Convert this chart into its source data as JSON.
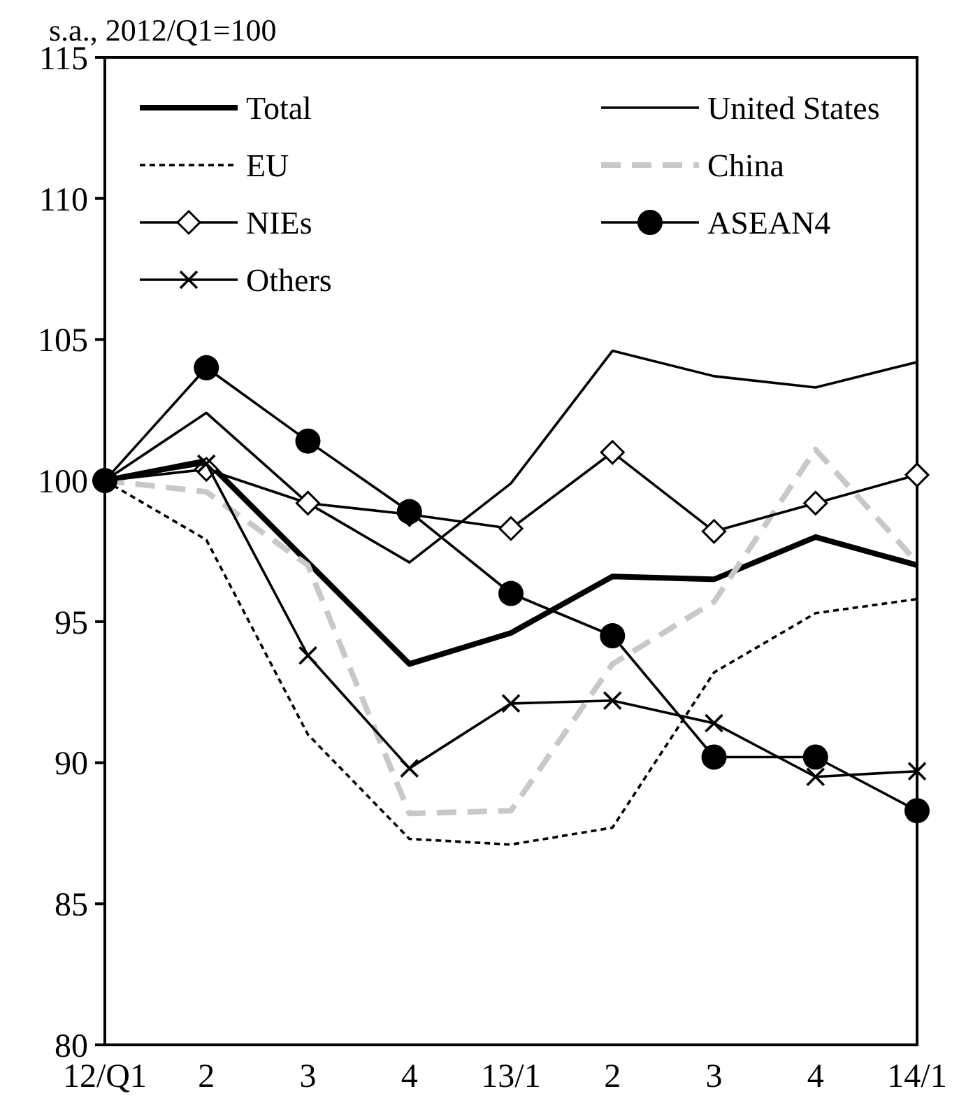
{
  "chart_data": {
    "type": "line",
    "ylabel": "s.a., 2012/Q1=100",
    "categories": [
      "12/Q1",
      "2",
      "3",
      "4",
      "13/1",
      "2",
      "3",
      "4",
      "14/1"
    ],
    "ylim": [
      80,
      115
    ],
    "yticks": [
      80,
      85,
      90,
      95,
      100,
      105,
      110,
      115
    ],
    "grid": false,
    "legend": "top",
    "series": [
      {
        "name": "Total",
        "color": "#000000",
        "line_style": "solid",
        "marker": "none",
        "values": [
          100,
          100.7,
          97.1,
          93.5,
          94.6,
          96.6,
          96.5,
          98.0,
          97.0
        ]
      },
      {
        "name": "United States",
        "color": "#000000",
        "line_style": "solid",
        "marker": "none",
        "values": [
          100,
          102.4,
          99.2,
          97.1,
          99.9,
          104.6,
          103.7,
          103.3,
          104.2
        ]
      },
      {
        "name": "EU",
        "color": "#000000",
        "line_style": "dotted",
        "marker": "none",
        "values": [
          100,
          97.9,
          91.0,
          87.3,
          87.1,
          87.7,
          93.2,
          95.3,
          95.8
        ]
      },
      {
        "name": "China",
        "color": "#c8c8c8",
        "line_style": "dashed",
        "marker": "none",
        "values": [
          100,
          99.6,
          97.0,
          88.2,
          88.3,
          93.5,
          95.7,
          101.1,
          97.1
        ]
      },
      {
        "name": "NIEs",
        "color": "#000000",
        "line_style": "solid",
        "marker": "diamond",
        "values": [
          100,
          100.4,
          99.2,
          98.8,
          98.3,
          101.0,
          98.2,
          99.2,
          100.2
        ]
      },
      {
        "name": "ASEAN4",
        "color": "#000000",
        "line_style": "solid",
        "marker": "circle",
        "values": [
          100,
          104.0,
          101.4,
          98.9,
          96.0,
          94.5,
          90.2,
          90.2,
          88.3
        ]
      },
      {
        "name": "Others",
        "color": "#000000",
        "line_style": "solid",
        "marker": "cross",
        "values": [
          100,
          100.6,
          93.8,
          89.8,
          92.1,
          92.2,
          91.4,
          89.5,
          89.7
        ]
      }
    ]
  }
}
